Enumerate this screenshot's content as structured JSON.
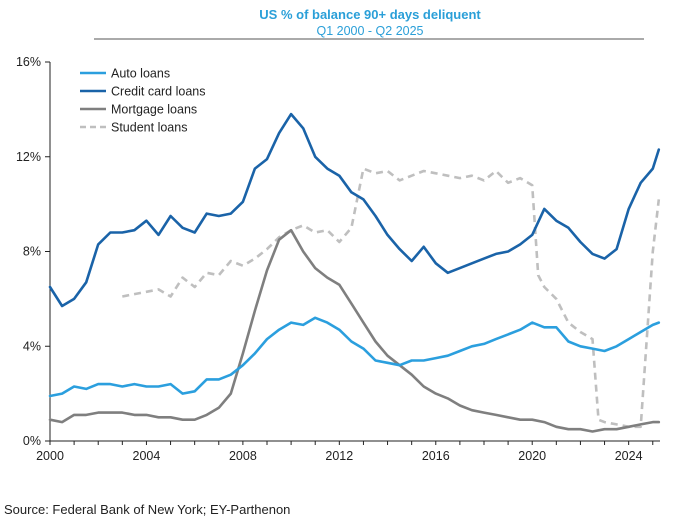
{
  "chart_data": {
    "type": "line",
    "title": "US % of balance 90+ days deliquent",
    "subtitle": "Q1 2000 - Q2 2025",
    "source": "Source: Federal Bank of New York; EY-Parthenon",
    "x_ticks": [
      "2000",
      "2004",
      "2008",
      "2012",
      "2016",
      "2020",
      "2024"
    ],
    "y_ticks": [
      "0%",
      "4%",
      "8%",
      "12%",
      "16%"
    ],
    "xlim": [
      2000,
      2025.3
    ],
    "ylim": [
      0,
      16
    ],
    "grid": false,
    "legend_position": "top-left",
    "series": [
      {
        "name": "Auto loans",
        "color": "#2b9fde",
        "dash": "solid",
        "points": [
          [
            2000,
            1.9
          ],
          [
            2000.5,
            2.0
          ],
          [
            2001,
            2.3
          ],
          [
            2001.5,
            2.2
          ],
          [
            2002,
            2.4
          ],
          [
            2002.5,
            2.4
          ],
          [
            2003,
            2.3
          ],
          [
            2003.5,
            2.4
          ],
          [
            2004,
            2.3
          ],
          [
            2004.5,
            2.3
          ],
          [
            2005,
            2.4
          ],
          [
            2005.5,
            2.0
          ],
          [
            2006,
            2.1
          ],
          [
            2006.5,
            2.6
          ],
          [
            2007,
            2.6
          ],
          [
            2007.5,
            2.8
          ],
          [
            2008,
            3.2
          ],
          [
            2008.5,
            3.7
          ],
          [
            2009,
            4.3
          ],
          [
            2009.5,
            4.7
          ],
          [
            2010,
            5.0
          ],
          [
            2010.5,
            4.9
          ],
          [
            2011,
            5.2
          ],
          [
            2011.5,
            5.0
          ],
          [
            2012,
            4.7
          ],
          [
            2012.5,
            4.2
          ],
          [
            2013,
            3.9
          ],
          [
            2013.5,
            3.4
          ],
          [
            2014,
            3.3
          ],
          [
            2014.5,
            3.2
          ],
          [
            2015,
            3.4
          ],
          [
            2015.5,
            3.4
          ],
          [
            2016,
            3.5
          ],
          [
            2016.5,
            3.6
          ],
          [
            2017,
            3.8
          ],
          [
            2017.5,
            4.0
          ],
          [
            2018,
            4.1
          ],
          [
            2018.5,
            4.3
          ],
          [
            2019,
            4.5
          ],
          [
            2019.5,
            4.7
          ],
          [
            2020,
            5.0
          ],
          [
            2020.5,
            4.8
          ],
          [
            2021,
            4.8
          ],
          [
            2021.5,
            4.2
          ],
          [
            2022,
            4.0
          ],
          [
            2022.5,
            3.9
          ],
          [
            2023,
            3.8
          ],
          [
            2023.5,
            4.0
          ],
          [
            2024,
            4.3
          ],
          [
            2024.5,
            4.6
          ],
          [
            2025,
            4.9
          ],
          [
            2025.25,
            5.0
          ]
        ]
      },
      {
        "name": "Credit card loans",
        "color": "#1a63a8",
        "dash": "solid",
        "points": [
          [
            2000,
            6.5
          ],
          [
            2000.5,
            5.7
          ],
          [
            2001,
            6.0
          ],
          [
            2001.5,
            6.7
          ],
          [
            2002,
            8.3
          ],
          [
            2002.5,
            8.8
          ],
          [
            2003,
            8.8
          ],
          [
            2003.5,
            8.9
          ],
          [
            2004,
            9.3
          ],
          [
            2004.5,
            8.7
          ],
          [
            2005,
            9.5
          ],
          [
            2005.5,
            9.0
          ],
          [
            2006,
            8.8
          ],
          [
            2006.5,
            9.6
          ],
          [
            2007,
            9.5
          ],
          [
            2007.5,
            9.6
          ],
          [
            2008,
            10.1
          ],
          [
            2008.5,
            11.5
          ],
          [
            2009,
            11.9
          ],
          [
            2009.5,
            13.0
          ],
          [
            2010,
            13.8
          ],
          [
            2010.5,
            13.2
          ],
          [
            2011,
            12.0
          ],
          [
            2011.5,
            11.5
          ],
          [
            2012,
            11.2
          ],
          [
            2012.5,
            10.5
          ],
          [
            2013,
            10.2
          ],
          [
            2013.5,
            9.5
          ],
          [
            2014,
            8.7
          ],
          [
            2014.5,
            8.1
          ],
          [
            2015,
            7.6
          ],
          [
            2015.5,
            8.2
          ],
          [
            2016,
            7.5
          ],
          [
            2016.5,
            7.1
          ],
          [
            2017,
            7.3
          ],
          [
            2017.5,
            7.5
          ],
          [
            2018,
            7.7
          ],
          [
            2018.5,
            7.9
          ],
          [
            2019,
            8.0
          ],
          [
            2019.5,
            8.3
          ],
          [
            2020,
            8.7
          ],
          [
            2020.5,
            9.8
          ],
          [
            2021,
            9.3
          ],
          [
            2021.5,
            9.0
          ],
          [
            2022,
            8.4
          ],
          [
            2022.5,
            7.9
          ],
          [
            2023,
            7.7
          ],
          [
            2023.5,
            8.1
          ],
          [
            2024,
            9.8
          ],
          [
            2024.5,
            10.9
          ],
          [
            2025,
            11.5
          ],
          [
            2025.25,
            12.3
          ]
        ]
      },
      {
        "name": "Mortgage loans",
        "color": "#7f7f7f",
        "dash": "solid",
        "points": [
          [
            2000,
            0.9
          ],
          [
            2000.5,
            0.8
          ],
          [
            2001,
            1.1
          ],
          [
            2001.5,
            1.1
          ],
          [
            2002,
            1.2
          ],
          [
            2002.5,
            1.2
          ],
          [
            2003,
            1.2
          ],
          [
            2003.5,
            1.1
          ],
          [
            2004,
            1.1
          ],
          [
            2004.5,
            1.0
          ],
          [
            2005,
            1.0
          ],
          [
            2005.5,
            0.9
          ],
          [
            2006,
            0.9
          ],
          [
            2006.5,
            1.1
          ],
          [
            2007,
            1.4
          ],
          [
            2007.5,
            2.0
          ],
          [
            2008,
            3.7
          ],
          [
            2008.5,
            5.5
          ],
          [
            2009,
            7.2
          ],
          [
            2009.5,
            8.5
          ],
          [
            2010,
            8.9
          ],
          [
            2010.5,
            8.0
          ],
          [
            2011,
            7.3
          ],
          [
            2011.5,
            6.9
          ],
          [
            2012,
            6.6
          ],
          [
            2012.5,
            5.8
          ],
          [
            2013,
            5.0
          ],
          [
            2013.5,
            4.2
          ],
          [
            2014,
            3.6
          ],
          [
            2014.5,
            3.2
          ],
          [
            2015,
            2.8
          ],
          [
            2015.5,
            2.3
          ],
          [
            2016,
            2.0
          ],
          [
            2016.5,
            1.8
          ],
          [
            2017,
            1.5
          ],
          [
            2017.5,
            1.3
          ],
          [
            2018,
            1.2
          ],
          [
            2018.5,
            1.1
          ],
          [
            2019,
            1.0
          ],
          [
            2019.5,
            0.9
          ],
          [
            2020,
            0.9
          ],
          [
            2020.5,
            0.8
          ],
          [
            2021,
            0.6
          ],
          [
            2021.5,
            0.5
          ],
          [
            2022,
            0.5
          ],
          [
            2022.5,
            0.4
          ],
          [
            2023,
            0.5
          ],
          [
            2023.5,
            0.5
          ],
          [
            2024,
            0.6
          ],
          [
            2024.5,
            0.7
          ],
          [
            2025,
            0.8
          ],
          [
            2025.25,
            0.8
          ]
        ]
      },
      {
        "name": "Student loans",
        "color": "#bfbfbf",
        "dash": "dashed",
        "points": [
          [
            2003,
            6.1
          ],
          [
            2003.5,
            6.2
          ],
          [
            2004,
            6.3
          ],
          [
            2004.5,
            6.4
          ],
          [
            2005,
            6.1
          ],
          [
            2005.5,
            6.9
          ],
          [
            2006,
            6.5
          ],
          [
            2006.5,
            7.1
          ],
          [
            2007,
            7.0
          ],
          [
            2007.5,
            7.6
          ],
          [
            2008,
            7.4
          ],
          [
            2008.5,
            7.7
          ],
          [
            2009,
            8.1
          ],
          [
            2009.5,
            8.6
          ],
          [
            2010,
            8.9
          ],
          [
            2010.5,
            9.1
          ],
          [
            2011,
            8.8
          ],
          [
            2011.5,
            8.9
          ],
          [
            2012,
            8.4
          ],
          [
            2012.5,
            9.0
          ],
          [
            2013,
            11.5
          ],
          [
            2013.5,
            11.3
          ],
          [
            2014,
            11.4
          ],
          [
            2014.5,
            11.0
          ],
          [
            2015,
            11.2
          ],
          [
            2015.5,
            11.4
          ],
          [
            2016,
            11.3
          ],
          [
            2016.5,
            11.2
          ],
          [
            2017,
            11.1
          ],
          [
            2017.5,
            11.2
          ],
          [
            2018,
            11.0
          ],
          [
            2018.5,
            11.4
          ],
          [
            2019,
            10.9
          ],
          [
            2019.5,
            11.1
          ],
          [
            2020,
            10.8
          ],
          [
            2020.25,
            7.0
          ],
          [
            2020.5,
            6.5
          ],
          [
            2021,
            6.0
          ],
          [
            2021.5,
            5.0
          ],
          [
            2022,
            4.6
          ],
          [
            2022.5,
            4.3
          ],
          [
            2022.75,
            0.9
          ],
          [
            2023,
            0.8
          ],
          [
            2023.5,
            0.7
          ],
          [
            2024,
            0.6
          ],
          [
            2024.5,
            0.6
          ],
          [
            2025,
            8.0
          ],
          [
            2025.25,
            10.2
          ]
        ]
      }
    ]
  }
}
